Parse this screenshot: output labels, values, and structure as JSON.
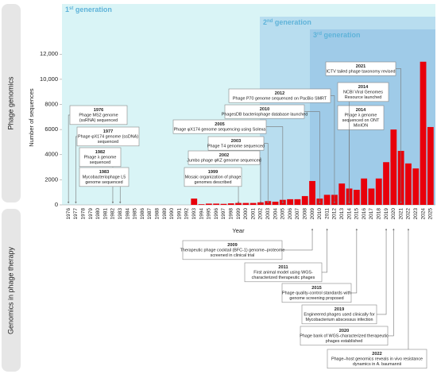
{
  "side_labels": [
    "Phage genomics",
    "Genomics in phage therapy"
  ],
  "generations": [
    {
      "ordinal": "1",
      "suffix": "st",
      "label": "generation"
    },
    {
      "ordinal": "2",
      "suffix": "nd",
      "label": "generation"
    },
    {
      "ordinal": "3",
      "suffix": "rd",
      "label": "generation"
    }
  ],
  "chart_data": {
    "type": "bar",
    "xlabel": "Year",
    "ylabel": "Number of sequences",
    "color": "#e8000b",
    "categories": [
      "1976",
      "1977",
      "1978",
      "1979",
      "1980",
      "1981",
      "1982",
      "1983",
      "1984",
      "1985",
      "1986",
      "1987",
      "1988",
      "1989",
      "1990",
      "1991",
      "1992",
      "1993",
      "1994",
      "1995",
      "1996",
      "1997",
      "1998",
      "1999",
      "2000",
      "2001",
      "2002",
      "2003",
      "2004",
      "2005",
      "2006",
      "2007",
      "2008",
      "2009",
      "2010",
      "2011",
      "2012",
      "2013",
      "2014",
      "2015",
      "2016",
      "2017",
      "2018",
      "2019",
      "2020",
      "2021",
      "2022",
      "2023",
      "2024",
      "2025"
    ],
    "values": [
      0,
      0,
      0,
      0,
      0,
      0,
      0,
      0,
      0,
      0,
      0,
      0,
      0,
      0,
      0,
      0,
      0,
      500,
      50,
      100,
      100,
      80,
      120,
      150,
      150,
      150,
      200,
      300,
      250,
      400,
      450,
      450,
      700,
      1900,
      500,
      800,
      800,
      1700,
      1300,
      1200,
      2100,
      1300,
      2100,
      3400,
      6000,
      4300,
      3300,
      2900,
      11400,
      6200
    ],
    "ylim": [
      0,
      16000
    ],
    "yticks": [
      0,
      2000,
      4000,
      6000,
      8000,
      {
        "value": 10000,
        "label": "10,000"
      },
      {
        "value": 12000,
        "label": "12,000"
      }
    ]
  },
  "genomics_events": [
    {
      "year": "1976",
      "lines": [
        "Phage MS2 genome",
        "(ssRNA) sequenced"
      ]
    },
    {
      "year": "1977",
      "lines": [
        "Phage φX174 genome (ssDNA)",
        "sequenced"
      ]
    },
    {
      "year": "1982",
      "lines": [
        "Phage λ genome",
        "sequenced"
      ]
    },
    {
      "year": "1983",
      "lines": [
        "Mycobacteriophage L5",
        "genome sequenced"
      ]
    },
    {
      "year": "1999",
      "lines": [
        "Mosaic organization of phage",
        "genomes described"
      ]
    },
    {
      "year": "2002",
      "lines": [
        "Jumbo phage φKZ genome sequenced"
      ]
    },
    {
      "year": "2003",
      "lines": [
        "Phage T4 genome sequenced"
      ]
    },
    {
      "year": "2005",
      "lines": [
        "Phage φX174 genome sequencing using Solexa"
      ]
    },
    {
      "year": "2010",
      "lines": [
        "PhagesDB bacteriophage database launched"
      ]
    },
    {
      "year": "2012",
      "lines": [
        "Phage P70 genome sequenced on PacBio SMRT"
      ]
    },
    {
      "year": "2014",
      "lines": [
        "Phage λ genome",
        "sequenced on ONT",
        "MinION"
      ]
    },
    {
      "year": "2014",
      "lines": [
        "NCBI Viral Genomes",
        "Resource launched"
      ]
    },
    {
      "year": "2021",
      "lines": [
        "ICTV tailed phage taxonomy revised"
      ]
    }
  ],
  "therapy_events": [
    {
      "year": "2009",
      "lines": [
        "Therapeutic phage cocktail (BFC-1) genome–proteome",
        "screened in clinical trial"
      ]
    },
    {
      "year": "2011",
      "lines": [
        "First animal model using WGS-",
        "characterized therapeutic phages"
      ]
    },
    {
      "year": "2015",
      "lines": [
        "Phage quality-control standards with",
        "genome screening proposed"
      ]
    },
    {
      "year": "2019",
      "lines": [
        "Engineered phages used clinically for",
        "Mycobacterium abscessus infection"
      ]
    },
    {
      "year": "2020",
      "lines": [
        "Phage bank of WGS-characterized therapeutic",
        "phages established"
      ]
    },
    {
      "year": "2022",
      "lines": [
        "Phage–host genomics reveals in vivo resistance",
        "dynamics in A. baumannii"
      ]
    }
  ]
}
